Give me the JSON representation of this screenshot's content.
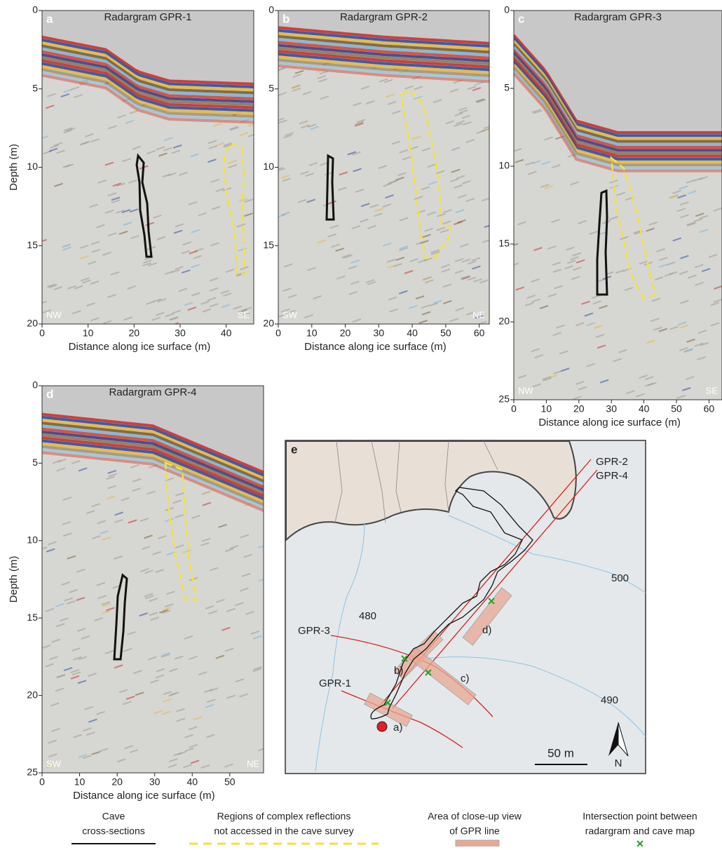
{
  "panels": [
    {
      "letter": "a",
      "title": "Radargram GPR-1",
      "ylabel": "Depth (m)",
      "xlabel": "Distance along ice surface (m)",
      "xlim": [
        0,
        46
      ],
      "ylim": [
        0,
        20
      ],
      "xticks": [
        0,
        10,
        20,
        30,
        40
      ],
      "yticks": [
        0,
        5,
        10,
        15,
        20
      ],
      "left_label": "NW",
      "right_label": "SE"
    },
    {
      "letter": "b",
      "title": "Radargram GPR-2",
      "xlabel": "Distance along ice surface (m)",
      "xlim": [
        0,
        63
      ],
      "ylim": [
        0,
        20
      ],
      "xticks": [
        0,
        10,
        20,
        30,
        40,
        50,
        60
      ],
      "yticks": [
        0,
        5,
        10,
        15,
        20
      ],
      "left_label": "SW",
      "right_label": "NE"
    },
    {
      "letter": "c",
      "title": "Radargram GPR-3",
      "xlabel": "Distance along ice surface (m)",
      "xlim": [
        0,
        64
      ],
      "ylim": [
        0,
        25
      ],
      "xticks": [
        0,
        10,
        20,
        30,
        40,
        50,
        60
      ],
      "yticks": [
        0,
        5,
        10,
        15,
        20,
        25
      ],
      "left_label": "NW",
      "right_label": "SE"
    },
    {
      "letter": "d",
      "title": "Radargram GPR-4",
      "ylabel": "Depth (m)",
      "xlabel": "Distance along ice surface (m)",
      "xlim": [
        0,
        59
      ],
      "ylim": [
        0,
        25
      ],
      "xticks": [
        0,
        10,
        20,
        30,
        40,
        50
      ],
      "yticks": [
        0,
        5,
        10,
        15,
        20,
        25
      ],
      "left_label": "SW",
      "right_label": "NE"
    }
  ],
  "map": {
    "letter": "e",
    "line_labels": [
      "GPR-2",
      "GPR-4",
      "GPR-3",
      "GPR-1"
    ],
    "contour_labels": [
      "480",
      "500",
      "490"
    ],
    "view_labels": [
      "a)",
      "b)",
      "c)",
      "d)"
    ],
    "scale": "50 m",
    "north": "N"
  },
  "legend": [
    {
      "lines": [
        "Cave",
        "cross-sections"
      ]
    },
    {
      "lines": [
        "Regions of complex reflections",
        "not accessed in the cave survey"
      ]
    },
    {
      "lines": [
        "Area of close-up view",
        "of GPR line"
      ]
    },
    {
      "lines": [
        "Intersection point between",
        "radargram and cave map"
      ]
    }
  ]
}
